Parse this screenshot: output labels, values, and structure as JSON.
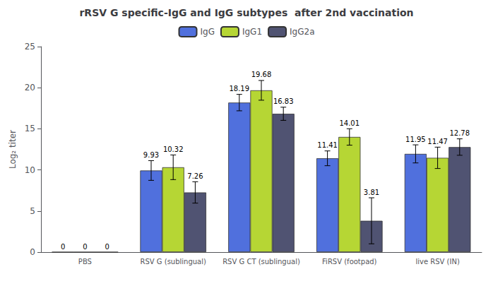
{
  "chart_data": {
    "type": "bar",
    "title": "rRSV G specific-IgG and IgG subtypes  after 2nd vaccination",
    "ylabel": "Log₂ titer",
    "categories": [
      "PBS",
      "RSV G (sublingual)",
      "RSV G CT (sublingual)",
      "FiRSV (footpad)",
      "live RSV (IN)"
    ],
    "series": [
      {
        "name": "IgG",
        "values": [
          0,
          9.93,
          18.19,
          11.41,
          11.95
        ],
        "errors": [
          0,
          1.2,
          1.0,
          0.9,
          1.1
        ]
      },
      {
        "name": "IgG1",
        "values": [
          0,
          10.32,
          19.68,
          14.01,
          11.47
        ],
        "errors": [
          0,
          1.5,
          1.2,
          1.0,
          1.3
        ]
      },
      {
        "name": "IgG2a",
        "values": [
          0,
          7.26,
          16.83,
          3.81,
          12.78
        ],
        "errors": [
          0,
          1.3,
          0.8,
          2.8,
          1.0
        ]
      }
    ],
    "ylim": [
      0,
      25
    ],
    "yticks": [
      0,
      5,
      10,
      15,
      20,
      25
    ],
    "grid": false,
    "legend": "top",
    "data_labels": true
  }
}
